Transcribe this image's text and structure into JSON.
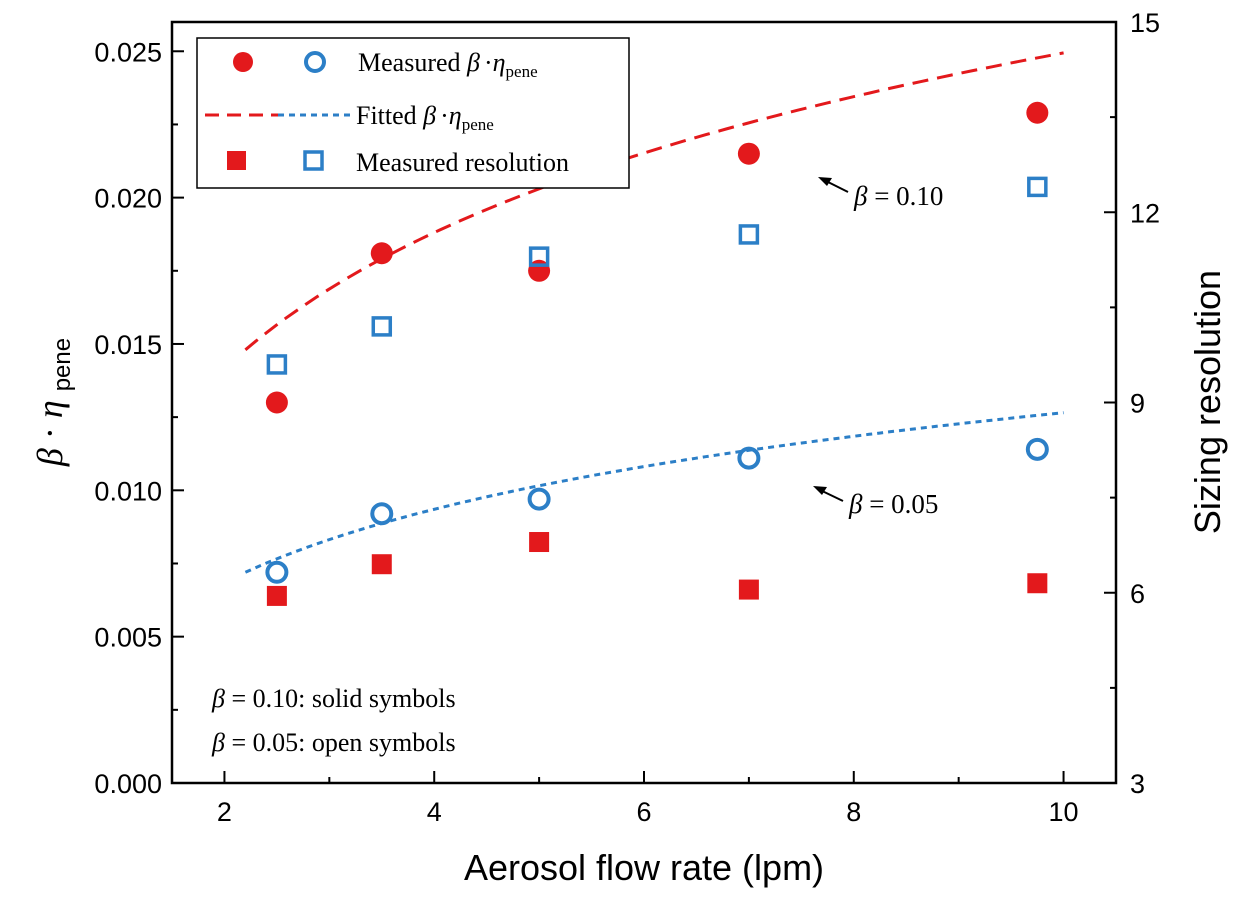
{
  "chart_data": {
    "type": "scatter",
    "x_axis": {
      "label": "Aerosol flow rate (lpm)",
      "range": [
        1.5,
        10.5
      ],
      "ticks": [
        2,
        4,
        6,
        8,
        10
      ],
      "tick_labels": [
        "2",
        "4",
        "6",
        "8",
        "10"
      ]
    },
    "y_left_axis": {
      "label_symbol": "β",
      "label_dot": "·",
      "label_eta": "η",
      "label_sub": "pene",
      "range": [
        0.0,
        0.026
      ],
      "ticks": [
        0.0,
        0.005,
        0.01,
        0.015,
        0.02,
        0.025
      ],
      "tick_labels": [
        "0.000",
        "0.005",
        "0.010",
        "0.015",
        "0.020",
        "0.025"
      ]
    },
    "y_right_axis": {
      "label": "Sizing resolution",
      "range": [
        3,
        15
      ],
      "ticks": [
        3,
        6,
        9,
        12,
        15
      ],
      "tick_labels": [
        "3",
        "6",
        "9",
        "12",
        "15"
      ]
    },
    "series": [
      {
        "key": "beta010_measured",
        "axis": "left",
        "marker": "filled-circle",
        "color": "#e3191c",
        "x": [
          2.5,
          3.5,
          5.0,
          7.0,
          9.75
        ],
        "y": [
          0.013,
          0.0181,
          0.0175,
          0.0215,
          0.0229
        ]
      },
      {
        "key": "beta005_measured",
        "axis": "left",
        "marker": "open-circle",
        "color": "#2c7fc7",
        "x": [
          2.5,
          3.5,
          5.0,
          7.0,
          9.75
        ],
        "y": [
          0.0072,
          0.0092,
          0.0097,
          0.0111,
          0.0114
        ]
      },
      {
        "key": "beta010_resolution",
        "axis": "right",
        "marker": "filled-square",
        "color": "#e3191c",
        "x": [
          2.5,
          3.5,
          5.0,
          7.0,
          9.75
        ],
        "y": [
          5.95,
          6.45,
          6.8,
          6.05,
          6.15
        ]
      },
      {
        "key": "beta005_resolution",
        "axis": "right",
        "marker": "open-square",
        "color": "#2c7fc7",
        "x": [
          2.5,
          3.5,
          5.0,
          7.0,
          9.75
        ],
        "y": [
          9.6,
          10.2,
          11.3,
          11.65,
          12.4
        ]
      },
      {
        "key": "beta010_fit",
        "axis": "left",
        "line": "dashed",
        "color": "#e3191c",
        "fit": {
          "a": 0.0148,
          "b": 0.0067,
          "x0": 2.2
        },
        "x_range": [
          2.2,
          10.0
        ]
      },
      {
        "key": "beta005_fit",
        "axis": "left",
        "line": "dotted",
        "color": "#2c7fc7",
        "fit": {
          "a": 0.0072,
          "b": 0.0036,
          "x0": 2.2
        },
        "x_range": [
          2.2,
          10.0
        ]
      }
    ],
    "legend": {
      "placement": "top-left",
      "entries": [
        {
          "prefix": "Measured ",
          "symbol": "β",
          "dot": "·",
          "eta": "η",
          "sub": "pene"
        },
        {
          "prefix": "Fitted ",
          "symbol": "β",
          "dot": "·",
          "eta": "η",
          "sub": "pene"
        },
        {
          "prefix": "Measured resolution"
        }
      ]
    },
    "annotations": [
      {
        "beta": "β",
        "text": " = 0.10",
        "x": 7.6,
        "y": 0.0206
      },
      {
        "beta": "β",
        "text": " = 0.05",
        "x": 7.6,
        "y": 0.0101
      }
    ],
    "notes": [
      {
        "beta": "β",
        "text": " = 0.10: solid symbols"
      },
      {
        "beta": "β",
        "text": " = 0.05: open symbols"
      }
    ],
    "grid": false
  }
}
